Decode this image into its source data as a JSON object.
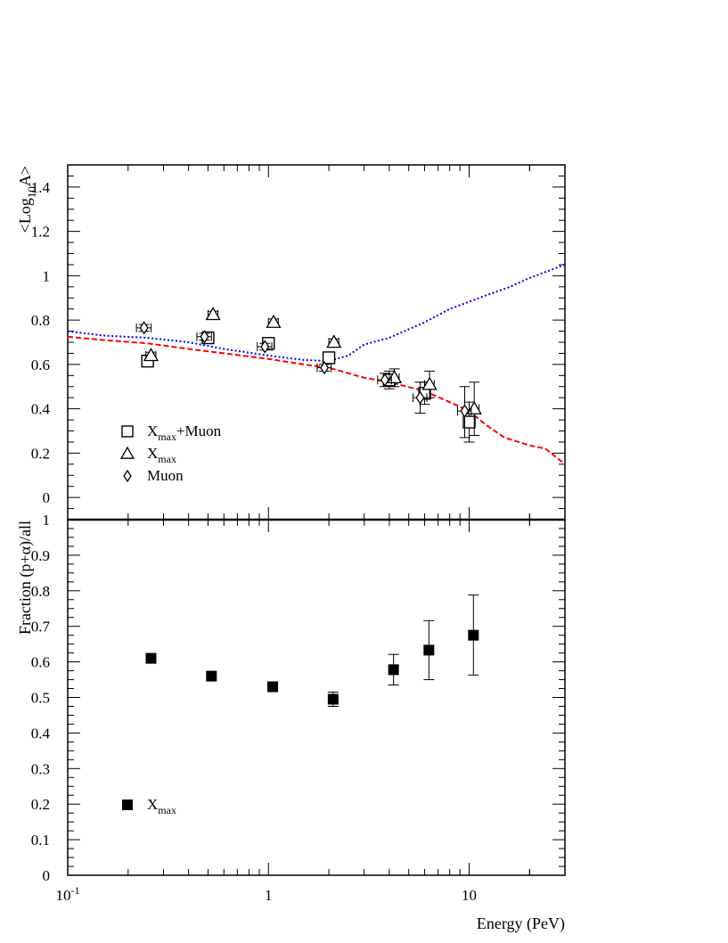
{
  "chart_data": [
    {
      "type": "scatter",
      "panel": "top",
      "ylabel_parts": [
        "<Log",
        "10",
        "A>"
      ],
      "xscale": "log",
      "xlim": [
        0.1,
        30
      ],
      "ylim": [
        -0.1,
        1.5
      ],
      "yticks": [
        0,
        0.2,
        0.4,
        0.6,
        0.8,
        1,
        1.2,
        1.4
      ],
      "ytick_labels": [
        "0",
        "0.2",
        "0.4",
        "0.6",
        "0.8",
        "1",
        "1.2",
        "1.4"
      ],
      "grid": false,
      "legend_position": "bottom-left",
      "legend": [
        {
          "marker": "square",
          "parts": [
            "X",
            "max",
            "+Muon"
          ]
        },
        {
          "marker": "triangle",
          "parts": [
            "X",
            "max",
            ""
          ]
        },
        {
          "marker": "diamond",
          "parts": [
            "Muon",
            "",
            ""
          ]
        }
      ],
      "series": [
        {
          "marker": "square",
          "points": [
            {
              "x": 0.25,
              "y": 0.615,
              "xerr": [
                0.235,
                0.265
              ],
              "yerr": [
                0.6,
                0.63
              ]
            },
            {
              "x": 0.5,
              "y": 0.72,
              "xerr": [
                0.47,
                0.53
              ],
              "yerr": [
                0.705,
                0.735
              ]
            },
            {
              "x": 1.0,
              "y": 0.695,
              "xerr": [
                0.94,
                1.06
              ],
              "yerr": [
                0.68,
                0.71
              ]
            },
            {
              "x": 2.0,
              "y": 0.63,
              "xerr": [
                1.88,
                2.12
              ],
              "yerr": [
                0.615,
                0.645
              ]
            },
            {
              "x": 4.0,
              "y": 0.53,
              "xerr": [
                3.76,
                4.24
              ],
              "yerr": [
                0.49,
                0.57
              ]
            },
            {
              "x": 6.0,
              "y": 0.47,
              "xerr": [
                5.65,
                6.35
              ],
              "yerr": [
                0.42,
                0.52
              ]
            },
            {
              "x": 10.0,
              "y": 0.34,
              "xerr": [
                9.4,
                10.6
              ],
              "yerr": [
                0.25,
                0.43
              ]
            }
          ]
        },
        {
          "marker": "triangle",
          "points": [
            {
              "x": 0.26,
              "y": 0.64,
              "xerr": [
                0.245,
                0.275
              ],
              "yerr": [
                0.625,
                0.655
              ]
            },
            {
              "x": 0.53,
              "y": 0.825,
              "xerr": [
                0.5,
                0.56
              ],
              "yerr": [
                0.81,
                0.84
              ]
            },
            {
              "x": 1.06,
              "y": 0.79,
              "xerr": [
                1.0,
                1.12
              ],
              "yerr": [
                0.775,
                0.805
              ]
            },
            {
              "x": 2.12,
              "y": 0.7,
              "xerr": [
                2.0,
                2.24
              ],
              "yerr": [
                0.685,
                0.715
              ]
            },
            {
              "x": 4.24,
              "y": 0.54,
              "xerr": [
                4.0,
                4.48
              ],
              "yerr": [
                0.5,
                0.58
              ]
            },
            {
              "x": 6.35,
              "y": 0.51,
              "xerr": [
                6.0,
                6.7
              ],
              "yerr": [
                0.45,
                0.57
              ]
            },
            {
              "x": 10.6,
              "y": 0.4,
              "xerr": [
                10.0,
                11.2
              ],
              "yerr": [
                0.28,
                0.52
              ]
            }
          ]
        },
        {
          "marker": "diamond",
          "points": [
            {
              "x": 0.24,
              "y": 0.765,
              "xerr": [
                0.22,
                0.26
              ],
              "yerr": [
                0.75,
                0.78
              ]
            },
            {
              "x": 0.48,
              "y": 0.725,
              "xerr": [
                0.44,
                0.52
              ],
              "yerr": [
                0.71,
                0.74
              ]
            },
            {
              "x": 0.96,
              "y": 0.68,
              "xerr": [
                0.88,
                1.04
              ],
              "yerr": [
                0.665,
                0.695
              ]
            },
            {
              "x": 1.9,
              "y": 0.585,
              "xerr": [
                1.75,
                2.05
              ],
              "yerr": [
                0.57,
                0.6
              ]
            },
            {
              "x": 3.8,
              "y": 0.53,
              "xerr": [
                3.5,
                4.1
              ],
              "yerr": [
                0.5,
                0.56
              ]
            },
            {
              "x": 5.7,
              "y": 0.45,
              "xerr": [
                5.25,
                6.15
              ],
              "yerr": [
                0.38,
                0.52
              ]
            },
            {
              "x": 9.5,
              "y": 0.39,
              "xerr": [
                8.75,
                10.25
              ],
              "yerr": [
                0.27,
                0.5
              ]
            }
          ]
        }
      ],
      "lines": [
        {
          "color": "#0000ff",
          "style": "dotted",
          "points": [
            [
              0.1,
              0.75
            ],
            [
              0.15,
              0.73
            ],
            [
              0.25,
              0.72
            ],
            [
              0.4,
              0.7
            ],
            [
              0.6,
              0.67
            ],
            [
              1.0,
              0.64
            ],
            [
              1.5,
              0.62
            ],
            [
              2.0,
              0.615
            ],
            [
              2.5,
              0.64
            ],
            [
              3.0,
              0.69
            ],
            [
              4.0,
              0.72
            ],
            [
              6.0,
              0.79
            ],
            [
              8.0,
              0.85
            ],
            [
              12.0,
              0.91
            ],
            [
              16.0,
              0.95
            ],
            [
              20.0,
              0.99
            ],
            [
              30.0,
              1.05
            ]
          ]
        },
        {
          "color": "#ff0000",
          "style": "dashed",
          "points": [
            [
              0.1,
              0.725
            ],
            [
              0.15,
              0.71
            ],
            [
              0.25,
              0.695
            ],
            [
              0.4,
              0.67
            ],
            [
              0.6,
              0.65
            ],
            [
              1.0,
              0.625
            ],
            [
              1.5,
              0.6
            ],
            [
              2.0,
              0.585
            ],
            [
              3.0,
              0.54
            ],
            [
              4.0,
              0.52
            ],
            [
              6.0,
              0.48
            ],
            [
              8.0,
              0.43
            ],
            [
              10.0,
              0.39
            ],
            [
              12.0,
              0.33
            ],
            [
              15.0,
              0.27
            ],
            [
              20.0,
              0.235
            ],
            [
              24.0,
              0.22
            ],
            [
              30.0,
              0.15
            ]
          ]
        }
      ]
    },
    {
      "type": "scatter",
      "panel": "bottom",
      "ylabel": "Fraction (p+α)/all",
      "xlabel": "Energy (PeV)",
      "xscale": "log",
      "xlim": [
        0.1,
        30
      ],
      "ylim": [
        0,
        1
      ],
      "xtick_labels": [
        {
          "value": 0.1,
          "base": "10",
          "exp": "-1"
        },
        {
          "value": 1,
          "base": "1",
          "exp": ""
        },
        {
          "value": 10,
          "base": "10",
          "exp": ""
        }
      ],
      "yticks": [
        0,
        0.1,
        0.2,
        0.3,
        0.4,
        0.5,
        0.6,
        0.7,
        0.8,
        0.9,
        1
      ],
      "ytick_labels": [
        "0",
        "0.1",
        "0.2",
        "0.3",
        "0.4",
        "0.5",
        "0.6",
        "0.7",
        "0.8",
        "0.9",
        "1"
      ],
      "grid": false,
      "legend_position": "bottom-left",
      "legend": [
        {
          "marker": "filled-square",
          "parts": [
            "X",
            "max",
            ""
          ]
        }
      ],
      "series": [
        {
          "marker": "filled-square",
          "points": [
            {
              "x": 0.26,
              "y": 0.61,
              "yerr": [
                0.61,
                0.61
              ]
            },
            {
              "x": 0.52,
              "y": 0.56,
              "yerr": [
                0.56,
                0.56
              ]
            },
            {
              "x": 1.05,
              "y": 0.53,
              "yerr": [
                0.53,
                0.53
              ]
            },
            {
              "x": 2.1,
              "y": 0.495,
              "yerr": [
                0.475,
                0.515
              ]
            },
            {
              "x": 4.2,
              "y": 0.578,
              "yerr": [
                0.535,
                0.621
              ]
            },
            {
              "x": 6.3,
              "y": 0.633,
              "yerr": [
                0.55,
                0.716
              ]
            },
            {
              "x": 10.5,
              "y": 0.675,
              "yerr": [
                0.563,
                0.788
              ]
            }
          ]
        }
      ]
    }
  ]
}
